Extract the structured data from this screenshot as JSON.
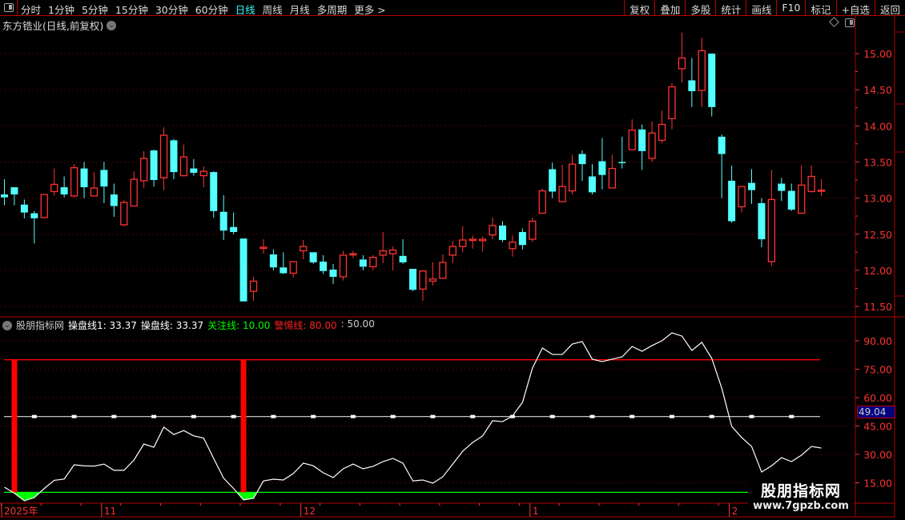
{
  "toolbar": {
    "tabs": [
      {
        "label": "分时"
      },
      {
        "label": "1分钟"
      },
      {
        "label": "5分钟"
      },
      {
        "label": "15分钟"
      },
      {
        "label": "30分钟"
      },
      {
        "label": "60分钟"
      },
      {
        "label": "日线",
        "active": true
      },
      {
        "label": "周线"
      },
      {
        "label": "月线"
      },
      {
        "label": "多周期"
      },
      {
        "label": "更多 >"
      }
    ],
    "buttons": [
      {
        "label": "复权"
      },
      {
        "label": "叠加"
      },
      {
        "label": "多股"
      },
      {
        "label": "统计"
      },
      {
        "label": "画线"
      },
      {
        "label": "F10"
      },
      {
        "label": "标记"
      },
      {
        "label": "+自选"
      },
      {
        "label": "返回"
      }
    ]
  },
  "stock": {
    "title": "东方锆业(日线,前复权)",
    "chevron": "⌄"
  },
  "colors": {
    "up": "#ff3232",
    "down": "#54ffff",
    "grid": "#8b0000",
    "axis": "#ff3232",
    "border": "#b00000",
    "line": "#ffffff",
    "alert": "#ff0000",
    "focus": "#00ff00"
  },
  "price_axis": {
    "ticks": [
      "15.00",
      "14.50",
      "14.00",
      "13.50",
      "13.00",
      "12.50",
      "12.00",
      "11.50"
    ],
    "values": [
      15,
      14.5,
      14,
      13.5,
      13,
      12.5,
      12,
      11.5
    ]
  },
  "indicator": {
    "name": "股朋指标网",
    "legend": [
      {
        "label": "操盘线1:",
        "value": "33.37",
        "color": "#ffffff"
      },
      {
        "label": "操盘线:",
        "value": "33.37",
        "color": "#ffffff"
      },
      {
        "label": "关注线:",
        "value": "10.00",
        "color": "#00ff00"
      },
      {
        "label": "警惕线:",
        "value": "80.00",
        "color": "#ff2020"
      },
      {
        "label": ":",
        "value": "50.00",
        "color": "#cccccc"
      }
    ],
    "axis_ticks": [
      "90.00",
      "75.00",
      "60.00",
      "45.00",
      "30.00",
      "15.00"
    ],
    "axis_values": [
      90,
      75,
      60,
      45,
      30,
      15
    ],
    "current_value": "49.04",
    "focus_level": 10,
    "alert_level": 80,
    "mid_level": 50,
    "signal_bars_at": [
      1,
      24
    ],
    "values": [
      12.7,
      9.5,
      5.5,
      7.2,
      12,
      16.3,
      17,
      24.5,
      24,
      23.8,
      24.9,
      21.6,
      21.6,
      27,
      35.5,
      33.8,
      44.4,
      40.5,
      42.6,
      39.8,
      38.6,
      27.9,
      17.5,
      12,
      6,
      6.8,
      16,
      16.9,
      16.5,
      19.9,
      25.4,
      24,
      20.3,
      17.8,
      22.4,
      24.9,
      22.4,
      23.7,
      26.2,
      27.9,
      25.4,
      16,
      16.5,
      14.8,
      18.2,
      24.9,
      31.7,
      36.3,
      39.8,
      47.8,
      47.3,
      50.3,
      57.5,
      75.6,
      86.2,
      82.8,
      82.8,
      88.3,
      89.6,
      80.3,
      79,
      80.3,
      81.5,
      87,
      84.5,
      87.5,
      90,
      94.2,
      92.5,
      84.9,
      89.2,
      80.7,
      65,
      44.8,
      38.9,
      34.2,
      20.7,
      24,
      28.3,
      26.2,
      29.6,
      34.2,
      33.37
    ]
  },
  "date_axis": [
    {
      "label": "2025年",
      "index": 0
    },
    {
      "label": "11",
      "index": 10
    },
    {
      "label": "12",
      "index": 30
    },
    {
      "label": "1",
      "index": 53
    },
    {
      "label": "2",
      "index": 73
    }
  ],
  "chart_data": {
    "type": "candlestick",
    "ylim": [
      11.5,
      15.3
    ],
    "ohlc": [
      [
        13.05,
        13.26,
        12.9,
        13.01
      ],
      [
        13.15,
        13.15,
        12.9,
        13.05
      ],
      [
        12.91,
        12.98,
        12.72,
        12.8
      ],
      [
        12.79,
        12.82,
        12.37,
        12.72
      ],
      [
        12.73,
        13.05,
        12.73,
        13.05
      ],
      [
        13.09,
        13.41,
        13.03,
        13.19
      ],
      [
        13.15,
        13.3,
        13.01,
        13.05
      ],
      [
        13.03,
        13.47,
        13.01,
        13.42
      ],
      [
        13.41,
        13.5,
        13.0,
        13.15
      ],
      [
        13.03,
        13.36,
        13.03,
        13.14
      ],
      [
        13.39,
        13.5,
        12.93,
        13.16
      ],
      [
        13.05,
        13.2,
        12.74,
        12.89
      ],
      [
        12.63,
        12.97,
        12.61,
        12.94
      ],
      [
        12.89,
        13.37,
        12.89,
        13.26
      ],
      [
        13.24,
        13.65,
        13.14,
        13.55
      ],
      [
        13.66,
        13.67,
        13.16,
        13.25
      ],
      [
        13.28,
        13.98,
        13.11,
        13.87
      ],
      [
        13.8,
        13.82,
        13.26,
        13.36
      ],
      [
        13.31,
        13.74,
        13.3,
        13.57
      ],
      [
        13.41,
        13.54,
        13.31,
        13.35
      ],
      [
        13.31,
        13.44,
        13.15,
        13.37
      ],
      [
        13.36,
        13.37,
        12.73,
        12.82
      ],
      [
        12.81,
        13.04,
        12.42,
        12.55
      ],
      [
        12.6,
        12.8,
        12.5,
        12.53
      ],
      [
        12.44,
        12.44,
        11.57,
        11.57
      ],
      [
        11.71,
        11.91,
        11.58,
        11.85
      ],
      [
        12.31,
        12.43,
        12.23,
        12.32
      ],
      [
        12.22,
        12.29,
        12.0,
        12.04
      ],
      [
        12.04,
        12.25,
        11.95,
        11.96
      ],
      [
        11.96,
        12.13,
        11.9,
        12.12
      ],
      [
        12.27,
        12.42,
        12.15,
        12.33
      ],
      [
        12.25,
        12.25,
        12.09,
        12.11
      ],
      [
        12.12,
        12.21,
        11.95,
        11.99
      ],
      [
        12.01,
        12.09,
        11.81,
        11.91
      ],
      [
        11.91,
        12.27,
        11.86,
        12.21
      ],
      [
        12.22,
        12.27,
        12.17,
        12.23
      ],
      [
        12.15,
        12.21,
        12.0,
        12.05
      ],
      [
        12.05,
        12.21,
        12.0,
        12.18
      ],
      [
        12.21,
        12.53,
        12.1,
        12.27
      ],
      [
        12.23,
        12.33,
        12.0,
        12.28
      ],
      [
        12.2,
        12.43,
        12.09,
        12.11
      ],
      [
        12.02,
        12.02,
        11.71,
        11.73
      ],
      [
        11.74,
        12.0,
        11.58,
        11.99
      ],
      [
        11.85,
        12.11,
        11.79,
        11.88
      ],
      [
        11.89,
        12.22,
        11.88,
        12.11
      ],
      [
        12.21,
        12.41,
        12.1,
        12.33
      ],
      [
        12.33,
        12.61,
        12.25,
        12.42
      ],
      [
        12.42,
        12.48,
        12.3,
        12.43
      ],
      [
        12.41,
        12.47,
        12.26,
        12.43
      ],
      [
        12.49,
        12.73,
        12.43,
        12.62
      ],
      [
        12.62,
        12.68,
        12.39,
        12.42
      ],
      [
        12.3,
        12.48,
        12.19,
        12.39
      ],
      [
        12.53,
        12.58,
        12.29,
        12.35
      ],
      [
        12.43,
        12.73,
        12.39,
        12.68
      ],
      [
        12.79,
        13.13,
        12.79,
        13.1
      ],
      [
        13.4,
        13.49,
        13.0,
        13.09
      ],
      [
        12.95,
        13.46,
        12.95,
        13.16
      ],
      [
        13.1,
        13.6,
        13.05,
        13.47
      ],
      [
        13.61,
        13.66,
        13.24,
        13.47
      ],
      [
        13.3,
        13.47,
        13.05,
        13.08
      ],
      [
        13.51,
        13.83,
        13.12,
        13.32
      ],
      [
        13.14,
        13.6,
        13.14,
        13.41
      ],
      [
        13.5,
        13.85,
        13.41,
        13.49
      ],
      [
        13.67,
        14.09,
        13.67,
        13.94
      ],
      [
        13.95,
        14.02,
        13.39,
        13.65
      ],
      [
        13.55,
        14.06,
        13.5,
        13.9
      ],
      [
        13.8,
        14.21,
        13.76,
        14.02
      ],
      [
        14.1,
        14.59,
        13.95,
        14.54
      ],
      [
        14.79,
        15.29,
        14.6,
        14.94
      ],
      [
        14.63,
        14.94,
        14.26,
        14.48
      ],
      [
        14.49,
        15.22,
        14.26,
        15.04
      ],
      [
        15.0,
        15.0,
        14.13,
        14.26
      ],
      [
        13.85,
        13.88,
        13.0,
        13.61
      ],
      [
        13.24,
        13.45,
        12.66,
        12.68
      ],
      [
        12.88,
        13.16,
        12.8,
        13.16
      ],
      [
        13.21,
        13.4,
        12.92,
        13.11
      ],
      [
        12.93,
        13.0,
        12.32,
        12.43
      ],
      [
        12.12,
        13.39,
        12.06,
        12.98
      ],
      [
        13.2,
        13.28,
        12.96,
        13.1
      ],
      [
        13.1,
        13.2,
        12.82,
        12.84
      ],
      [
        12.79,
        13.45,
        12.79,
        13.18
      ],
      [
        13.09,
        13.45,
        13.08,
        13.3
      ],
      [
        13.1,
        13.26,
        13.03,
        13.11
      ]
    ]
  },
  "watermark": {
    "title": "股朋指标网",
    "url": "www.7gpzb.com"
  }
}
